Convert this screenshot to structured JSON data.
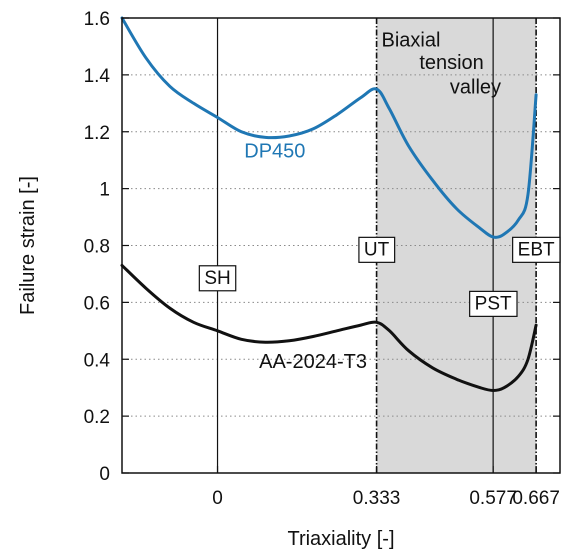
{
  "chart_data": {
    "type": "line",
    "xlabel": "Triaxiality [-]",
    "ylabel": "Failure strain [-]",
    "ylim": [
      0,
      1.6
    ],
    "xlim": [
      -0.2,
      0.717
    ],
    "x_ticks": [
      {
        "value": 0,
        "label": "0"
      },
      {
        "value": 0.333,
        "label": "0.333"
      },
      {
        "value": 0.577,
        "label": "0.577"
      },
      {
        "value": 0.667,
        "label": "0.667"
      }
    ],
    "y_ticks": [
      {
        "value": 0,
        "label": "0"
      },
      {
        "value": 0.2,
        "label": "0.2"
      },
      {
        "value": 0.4,
        "label": "0.4"
      },
      {
        "value": 0.6,
        "label": "0.6"
      },
      {
        "value": 0.8,
        "label": "0.8"
      },
      {
        "value": 1.0,
        "label": "1"
      },
      {
        "value": 1.2,
        "label": "1.2"
      },
      {
        "value": 1.4,
        "label": "1.4"
      },
      {
        "value": 1.6,
        "label": "1.6"
      }
    ],
    "grid": "dotted",
    "shaded_region": {
      "x_from": 0.333,
      "x_to": 0.667,
      "color": "#d9d9d9"
    },
    "region_annotation": [
      "Biaxial",
      "tension",
      "valley"
    ],
    "markers": [
      {
        "label": "SH",
        "x": 0,
        "y": 0.69,
        "line": "solid"
      },
      {
        "label": "UT",
        "x": 0.333,
        "y": 0.79,
        "line": "dash-dot"
      },
      {
        "label": "PST",
        "x": 0.577,
        "y": 0.6,
        "line": "solid"
      },
      {
        "label": "EBT",
        "x": 0.667,
        "y": 0.79,
        "line": "dash-dot"
      }
    ],
    "series": [
      {
        "name": "DP450",
        "color": "#1f77b4",
        "label_pos": {
          "x": 0.12,
          "y": 1.11
        },
        "x": [
          -0.2,
          -0.15,
          -0.1,
          -0.05,
          0,
          0.05,
          0.1,
          0.15,
          0.2,
          0.25,
          0.3,
          0.333,
          0.36,
          0.4,
          0.45,
          0.5,
          0.55,
          0.577,
          0.6,
          0.63,
          0.65,
          0.667
        ],
        "y": [
          1.6,
          1.46,
          1.36,
          1.3,
          1.25,
          1.2,
          1.18,
          1.185,
          1.21,
          1.26,
          1.32,
          1.35,
          1.28,
          1.15,
          1.03,
          0.93,
          0.86,
          0.83,
          0.84,
          0.89,
          0.98,
          1.33
        ]
      },
      {
        "name": "AA-2024-T3",
        "color": "#111111",
        "label_pos": {
          "x": 0.2,
          "y": 0.37
        },
        "x": [
          -0.2,
          -0.15,
          -0.1,
          -0.05,
          0,
          0.05,
          0.1,
          0.15,
          0.2,
          0.25,
          0.3,
          0.333,
          0.36,
          0.4,
          0.45,
          0.5,
          0.55,
          0.577,
          0.6,
          0.63,
          0.65,
          0.667
        ],
        "y": [
          0.73,
          0.65,
          0.58,
          0.53,
          0.5,
          0.47,
          0.46,
          0.465,
          0.48,
          0.5,
          0.52,
          0.53,
          0.5,
          0.43,
          0.37,
          0.33,
          0.3,
          0.29,
          0.3,
          0.34,
          0.4,
          0.52
        ]
      }
    ]
  }
}
